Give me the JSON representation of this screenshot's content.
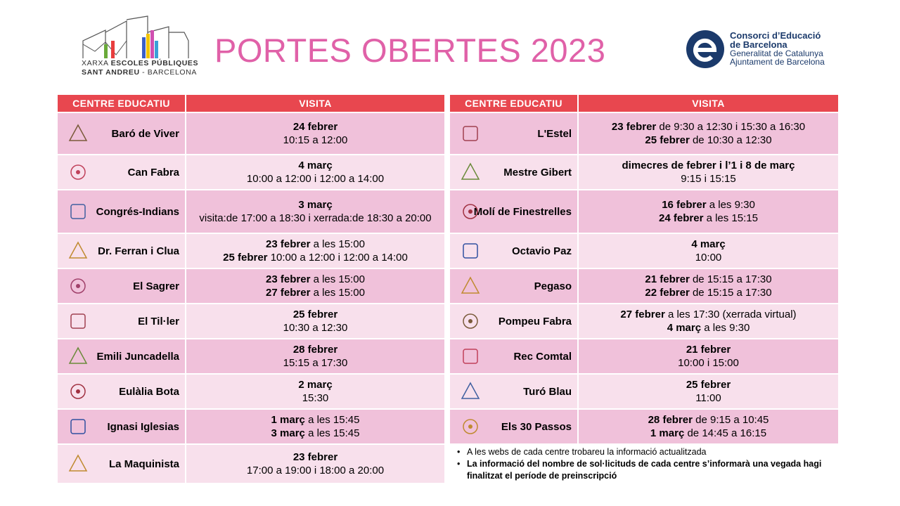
{
  "header": {
    "logo_left": {
      "line1": [
        "XARXA",
        "ESCOLES PÚBLIQUES"
      ],
      "line2": [
        "SANT ANDREU",
        "- BARCELONA"
      ]
    },
    "title": "PORTES OBERTES 2023",
    "logo_right": {
      "name": [
        "Consorci d’Educació",
        "de Barcelona"
      ],
      "sub": [
        "Generalitat de Catalunya",
        "Ajuntament de Barcelona"
      ]
    }
  },
  "table_left": {
    "columns": [
      "CENTRE EDUCATIU",
      "VISITA"
    ],
    "rows": [
      {
        "name": "Baró de Viver",
        "visit": [
          {
            "bold": "24 febrer"
          },
          {
            "normal": "10:15 a 12:00"
          }
        ]
      },
      {
        "name": "Can Fabra",
        "visit": [
          {
            "bold": "4 març"
          },
          {
            "normal": "10:00 a 12:00 i 12:00 a 14:00"
          }
        ]
      },
      {
        "name": "Congrés-Indians",
        "visit": [
          {
            "bold": "3 març"
          },
          {
            "normal": "visita:de 17:00 a 18:30 i xerrada:de 18:30 a 20:00"
          }
        ]
      },
      {
        "name": "Dr. Ferran i Clua",
        "visit": [
          {
            "bold": "23 febrer",
            "normal": "a les 15:00"
          },
          {
            "bold": "25 febrer",
            "normal": "10:00 a 12:00 i 12:00 a 14:00"
          }
        ]
      },
      {
        "name": "El Sagrer",
        "visit": [
          {
            "bold": "23 febrer",
            "normal": "a les 15:00"
          },
          {
            "bold": "27 febrer",
            "normal": "a les 15:00"
          }
        ]
      },
      {
        "name": "El Til·ler",
        "visit": [
          {
            "bold": "25 febrer"
          },
          {
            "normal": "10:30 a 12:30"
          }
        ]
      },
      {
        "name": "Emili Juncadella",
        "visit": [
          {
            "bold": "28 febrer"
          },
          {
            "normal": "15:15 a 17:30"
          }
        ]
      },
      {
        "name": "Eulàlia Bota",
        "visit": [
          {
            "bold": "2 març"
          },
          {
            "normal": "15:30"
          }
        ]
      },
      {
        "name": "Ignasi Iglesias",
        "visit": [
          {
            "bold": "1 març",
            "normal": "a les 15:45"
          },
          {
            "bold": "3 març",
            "normal": "a les 15:45"
          }
        ]
      },
      {
        "name": "La Maquinista",
        "visit": [
          {
            "bold": "23 febrer"
          },
          {
            "normal": "17:00 a 19:00 i 18:00 a 20:00"
          }
        ]
      }
    ]
  },
  "table_right": {
    "columns": [
      "CENTRE EDUCATIU",
      "VISITA"
    ],
    "rows": [
      {
        "name": "L'Estel",
        "visit": [
          {
            "bold": "23 febrer",
            "normal": "de 9:30 a 12:30 i 15:30 a 16:30"
          },
          {
            "bold": "25 febrer",
            "normal": "de 10:30 a 12:30"
          }
        ]
      },
      {
        "name": "Mestre Gibert",
        "visit": [
          {
            "bold": "dimecres de febrer i l’1  i 8 de març"
          },
          {
            "normal": "9:15 i 15:15"
          }
        ]
      },
      {
        "name": "Molí de Finestrelles",
        "visit": [
          {
            "bold": "16 febrer",
            "normal": "a les 9:30"
          },
          {
            "bold": "24 febrer",
            "normal": "a les 15:15"
          }
        ]
      },
      {
        "name": "Octavio Paz",
        "visit": [
          {
            "bold": "4 març"
          },
          {
            "normal": "10:00"
          }
        ]
      },
      {
        "name": "Pegaso",
        "visit": [
          {
            "bold": "21 febrer",
            "normal": "de 15:15 a 17:30"
          },
          {
            "bold": "22 febrer",
            "normal": "de 15:15 a 17:30"
          }
        ]
      },
      {
        "name": "Pompeu Fabra",
        "visit": [
          {
            "bold": "27 febrer",
            "normal": "a les 17:30 (xerrada virtual)"
          },
          {
            "bold": "4 març",
            "normal": "a les 9:30"
          }
        ]
      },
      {
        "name": "Rec Comtal",
        "visit": [
          {
            "bold": "21 febrer"
          },
          {
            "normal": "10:00 i 15:00"
          }
        ]
      },
      {
        "name": "Turó Blau",
        "visit": [
          {
            "bold": "25 febrer"
          },
          {
            "normal": "11:00"
          }
        ]
      },
      {
        "name": "Els 30 Passos",
        "visit": [
          {
            "bold": "28 febrer",
            "normal": "de 9:15 a 10:45"
          },
          {
            "bold": "1 març",
            "normal": "de 14:45 a 16:15"
          }
        ]
      }
    ],
    "notes": [
      {
        "normal": "A les webs de cada centre trobareu la informació actualitzada"
      },
      {
        "bold": "La informació del nombre de sol·licituds de cada centre s’informarà una vegada hagi finalitzat el període de preinscripció"
      }
    ]
  }
}
